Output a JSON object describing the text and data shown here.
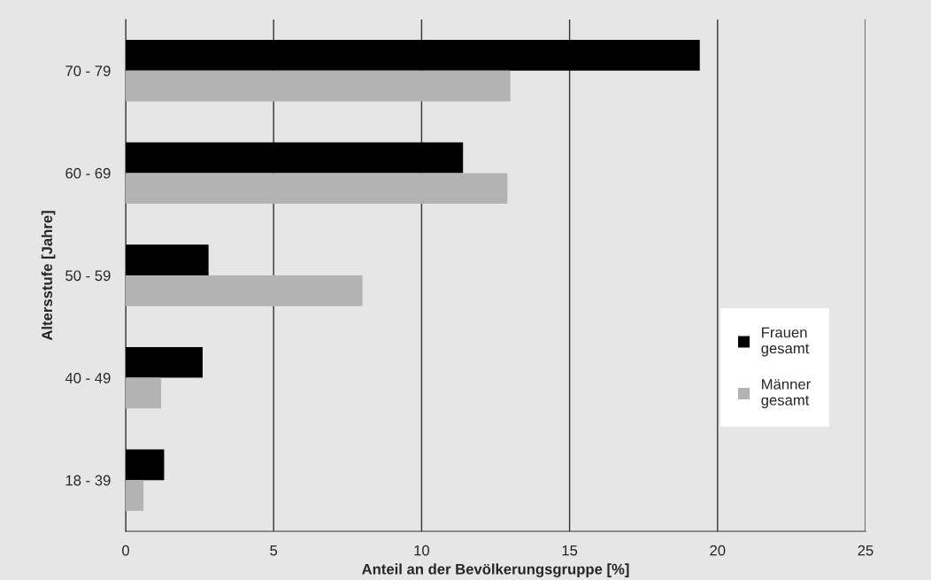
{
  "chart_data": {
    "type": "bar",
    "orientation": "horizontal",
    "xlabel": "Anteil an der Bevölkerungsgruppe [%]",
    "ylabel": "Altersstufe [Jahre]",
    "categories": [
      "70 - 79",
      "60 - 69",
      "50 - 59",
      "40 - 49",
      "18 - 39"
    ],
    "series": [
      {
        "name": "Frauen\ngesamt",
        "color": "#000000",
        "values": [
          19.4,
          11.4,
          2.8,
          2.6,
          1.3
        ]
      },
      {
        "name": "Männer\ngesamt",
        "color": "#b3b3b3",
        "values": [
          13.0,
          12.9,
          8.0,
          1.2,
          0.6
        ]
      }
    ],
    "xlim": [
      0,
      25
    ],
    "xticks": [
      0,
      5,
      10,
      15,
      20,
      25
    ],
    "grid": "x",
    "legend": "right"
  }
}
